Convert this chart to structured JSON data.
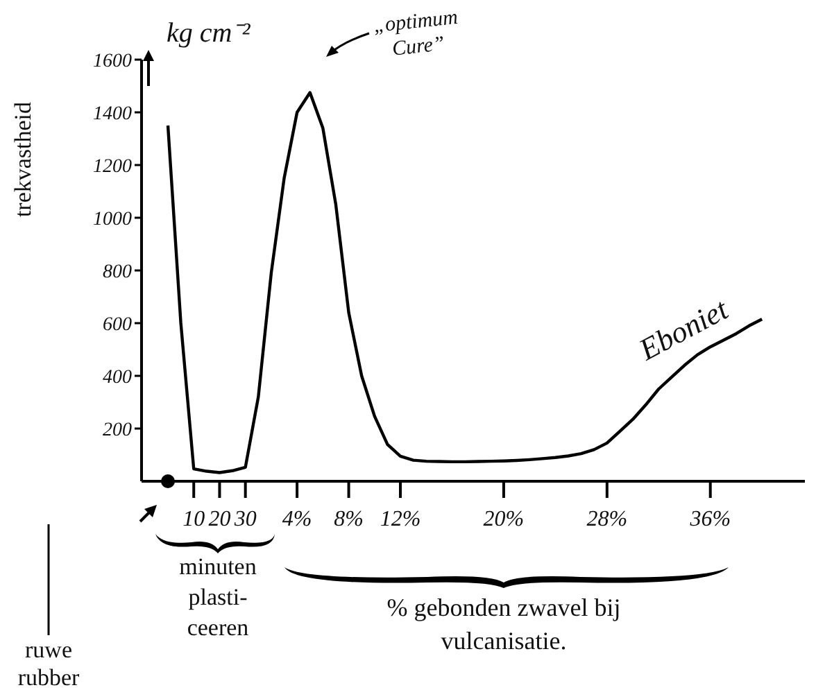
{
  "chart_data": {
    "type": "line",
    "ylabel": "trekvastheid",
    "xlabel": "% gebonden zwavel bij vulcanisatie.",
    "annotations": [
      "kg cm⁻²",
      "„optimum Cure”",
      "Eboniet",
      "ruwe rubber",
      "minuten plasti-ceeren"
    ],
    "categories": [
      null,
      null,
      "10",
      null,
      "20",
      null,
      "30",
      null,
      null,
      null,
      "4%",
      null,
      null,
      null,
      "8%",
      null,
      null,
      null,
      "12%",
      null,
      null,
      null,
      null,
      null,
      null,
      null,
      "20%",
      null,
      null,
      null,
      null,
      null,
      null,
      null,
      "28%",
      null,
      null,
      null,
      null,
      null,
      null,
      null,
      "36%",
      null,
      null,
      null,
      null,
      null,
      null,
      null
    ],
    "series": [
      {
        "color": "#000000",
        "values": [
          1350,
          600,
          47,
          38,
          33,
          40,
          53,
          320,
          790,
          1150,
          1400,
          1475,
          1340,
          1050,
          640,
          400,
          247,
          140,
          95,
          80,
          76,
          75,
          74,
          74,
          75,
          76,
          77,
          79,
          82,
          86,
          90,
          96,
          105,
          120,
          145,
          190,
          235,
          290,
          350,
          395,
          440,
          480,
          510,
          535,
          560,
          590,
          615,
          null,
          null,
          null
        ]
      }
    ],
    "ylim": [
      0,
      1600
    ],
    "yticks": [
      200,
      400,
      600,
      800,
      1000,
      1200,
      1400,
      1600
    ],
    "grid": false,
    "legend": false
  }
}
